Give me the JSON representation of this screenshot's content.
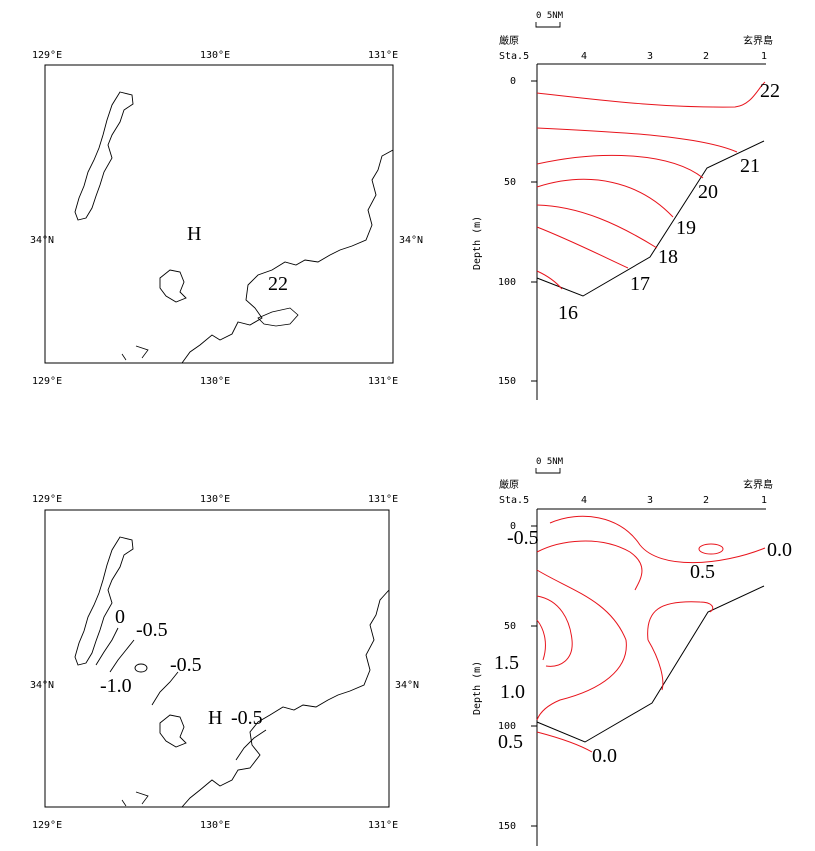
{
  "map_top": {
    "lon_labels": [
      "129°E",
      "130°E",
      "131°E"
    ],
    "lat_label_left": "34°N",
    "lat_label_right": "34°N",
    "high_label": "H",
    "contour_label": "22"
  },
  "map_bottom": {
    "lon_labels": [
      "129°E",
      "130°E",
      "131°E"
    ],
    "lat_label_left": "34°N",
    "lat_label_right": "34°N",
    "high_label": "H",
    "contour_labels": [
      "0",
      "-0.5",
      "-0.5",
      "-1.0",
      "-0.5"
    ]
  },
  "section_top": {
    "scale_label": "0  5NM",
    "left_place": "厳原",
    "right_place": "玄界島",
    "station_prefix": "Sta.5",
    "stations": [
      "4",
      "3",
      "2",
      "1"
    ],
    "y_ticks": [
      "0",
      "50",
      "100",
      "150"
    ],
    "y_label": "Depth (m)",
    "isotherms": [
      "22",
      "21",
      "20",
      "19",
      "18",
      "17",
      "16"
    ]
  },
  "section_bottom": {
    "scale_label": "0  5NM",
    "left_place": "厳原",
    "right_place": "玄界島",
    "station_prefix": "Sta.5",
    "stations": [
      "4",
      "3",
      "2",
      "1"
    ],
    "y_ticks": [
      "0",
      "50",
      "100",
      "150"
    ],
    "y_label": "Depth (m)",
    "contour_labels": [
      "-0.5",
      "0.0",
      "0.5",
      "1.5",
      "1.0",
      "0.5",
      "0.0"
    ]
  },
  "colors": {
    "contour": "#e8141c",
    "line": "#000000"
  }
}
